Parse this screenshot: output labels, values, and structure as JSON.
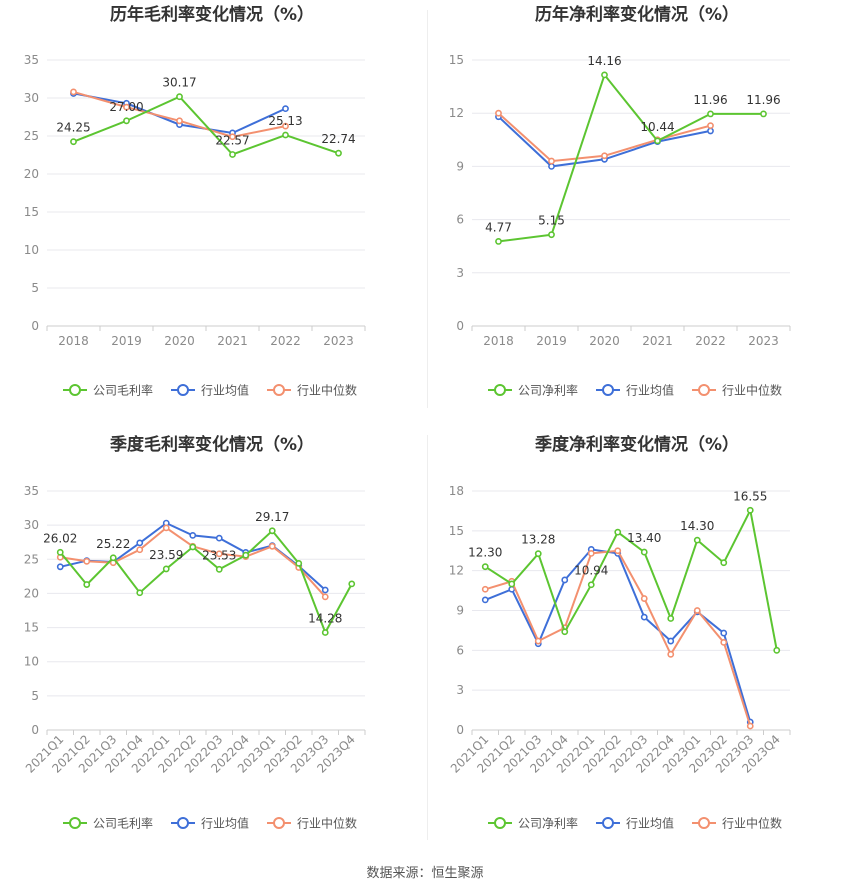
{
  "colors": {
    "company": "#5cc531",
    "industry_avg": "#3e6fd8",
    "industry_median": "#f3906f",
    "grid": "#e8e8ee",
    "axis": "#cccccc"
  },
  "source": {
    "text": "数据来源：恒生聚源"
  },
  "chart_data": [
    {
      "id": "annual-gross",
      "type": "line",
      "title": "历年毛利率变化情况（%）",
      "categories": [
        "2018",
        "2019",
        "2020",
        "2021",
        "2022",
        "2023"
      ],
      "ylim": [
        0,
        35
      ],
      "yticks": [
        0,
        5,
        10,
        15,
        20,
        25,
        30,
        35
      ],
      "rotate_x": false,
      "legend_position": "bottom",
      "series": [
        {
          "name": "公司毛利率",
          "color": "#5cc531",
          "values": [
            24.25,
            27.0,
            30.17,
            22.57,
            25.13,
            22.74
          ],
          "labels": [
            "24.25",
            "27.00",
            "30.17",
            "22.57",
            "25.13",
            "22.74"
          ]
        },
        {
          "name": "行业均值",
          "color": "#3e6fd8",
          "values": [
            30.6,
            29.3,
            26.5,
            25.4,
            28.6,
            null
          ]
        },
        {
          "name": "行业中位数",
          "color": "#f3906f",
          "values": [
            30.8,
            28.8,
            27.0,
            24.9,
            26.3,
            null
          ]
        }
      ]
    },
    {
      "id": "annual-net",
      "type": "line",
      "title": "历年净利率变化情况（%）",
      "categories": [
        "2018",
        "2019",
        "2020",
        "2021",
        "2022",
        "2023"
      ],
      "ylim": [
        0,
        15
      ],
      "yticks": [
        0,
        3,
        6,
        9,
        12,
        15
      ],
      "rotate_x": false,
      "legend_position": "bottom",
      "series": [
        {
          "name": "公司净利率",
          "color": "#5cc531",
          "values": [
            4.77,
            5.15,
            14.16,
            10.44,
            11.96,
            11.96
          ],
          "labels": [
            "4.77",
            "5.15",
            "14.16",
            "10.44",
            "11.96",
            "11.96"
          ]
        },
        {
          "name": "行业均值",
          "color": "#3e6fd8",
          "values": [
            11.8,
            9.0,
            9.4,
            10.4,
            11.0,
            null
          ]
        },
        {
          "name": "行业中位数",
          "color": "#f3906f",
          "values": [
            12.0,
            9.3,
            9.6,
            10.5,
            11.3,
            null
          ]
        }
      ]
    },
    {
      "id": "quarterly-gross",
      "type": "line",
      "title": "季度毛利率变化情况（%）",
      "categories": [
        "2021Q1",
        "2021Q2",
        "2021Q3",
        "2021Q4",
        "2022Q1",
        "2022Q2",
        "2022Q3",
        "2022Q4",
        "2023Q1",
        "2023Q2",
        "2023Q3",
        "2023Q4"
      ],
      "ylim": [
        0,
        35
      ],
      "yticks": [
        0,
        5,
        10,
        15,
        20,
        25,
        30,
        35
      ],
      "rotate_x": true,
      "legend_position": "bottom",
      "series": [
        {
          "name": "公司毛利率",
          "color": "#5cc531",
          "values": [
            26.02,
            21.3,
            25.22,
            20.1,
            23.59,
            26.8,
            23.53,
            25.6,
            29.17,
            24.4,
            14.28,
            21.4
          ],
          "labels": [
            "26.02",
            "",
            "25.22",
            "",
            "23.59",
            "",
            "23.53",
            "",
            "29.17",
            "",
            "14.28",
            ""
          ]
        },
        {
          "name": "行业均值",
          "color": "#3e6fd8",
          "values": [
            23.9,
            24.8,
            24.6,
            27.4,
            30.3,
            28.5,
            28.1,
            26.0,
            27.0,
            24.0,
            20.5,
            null
          ]
        },
        {
          "name": "行业中位数",
          "color": "#f3906f",
          "values": [
            25.3,
            24.7,
            24.5,
            26.4,
            29.6,
            26.9,
            25.8,
            25.4,
            26.9,
            23.8,
            19.5,
            null
          ]
        }
      ]
    },
    {
      "id": "quarterly-net",
      "type": "line",
      "title": "季度净利率变化情况（%）",
      "categories": [
        "2021Q1",
        "2021Q2",
        "2021Q3",
        "2021Q4",
        "2022Q1",
        "2022Q2",
        "2022Q3",
        "2022Q4",
        "2023Q1",
        "2023Q2",
        "2023Q3",
        "2023Q4"
      ],
      "ylim": [
        0,
        18
      ],
      "yticks": [
        0,
        3,
        6,
        9,
        12,
        15,
        18
      ],
      "rotate_x": true,
      "legend_position": "bottom",
      "series": [
        {
          "name": "公司净利率",
          "color": "#5cc531",
          "values": [
            12.3,
            11.0,
            13.28,
            7.4,
            10.94,
            14.9,
            13.4,
            8.4,
            14.3,
            12.6,
            16.55,
            6.0
          ],
          "labels": [
            "12.30",
            "",
            "13.28",
            "",
            "10.94",
            "",
            "13.40",
            "",
            "14.30",
            "",
            "16.55",
            ""
          ]
        },
        {
          "name": "行业均值",
          "color": "#3e6fd8",
          "values": [
            9.8,
            10.6,
            6.5,
            11.3,
            13.6,
            13.3,
            8.5,
            6.7,
            8.9,
            7.3,
            0.6,
            null
          ]
        },
        {
          "name": "行业中位数",
          "color": "#f3906f",
          "values": [
            10.6,
            11.2,
            6.7,
            7.7,
            13.3,
            13.5,
            9.9,
            5.7,
            9.0,
            6.6,
            0.3,
            null
          ]
        }
      ]
    }
  ]
}
